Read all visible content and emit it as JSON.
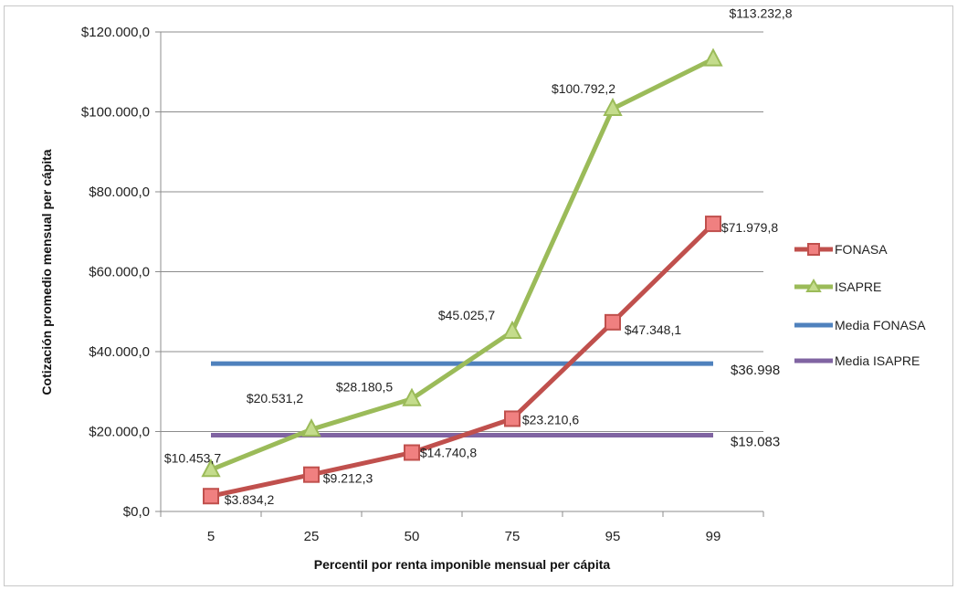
{
  "chart_data": {
    "type": "line",
    "title": "",
    "xlabel": "Percentil por renta imponible mensual per cápita",
    "ylabel": "Cotización promedio mensual per cápita",
    "categories": [
      "5",
      "25",
      "50",
      "75",
      "95",
      "99"
    ],
    "ylim": [
      0,
      120000
    ],
    "yticks": [
      {
        "value": 0,
        "label": "$0,0"
      },
      {
        "value": 20000,
        "label": "$20.000,0"
      },
      {
        "value": 40000,
        "label": "$40.000,0"
      },
      {
        "value": 60000,
        "label": "$60.000,0"
      },
      {
        "value": 80000,
        "label": "$80.000,0"
      },
      {
        "value": 100000,
        "label": "$100.000,0"
      },
      {
        "value": 120000,
        "label": "$120.000,0"
      }
    ],
    "grid": true,
    "legend_position": "right",
    "series": [
      {
        "name": "FONASA",
        "color": "#c0504d",
        "marker": "square",
        "values": [
          3834.2,
          9212.3,
          14740.8,
          23210.6,
          47348.1,
          71979.8
        ],
        "labels": [
          "$3.834,2",
          "$9.212,3",
          "$14.740,8",
          "$23.210,6",
          "$47.348,1",
          "$71.979,8"
        ]
      },
      {
        "name": "ISAPRE",
        "color": "#9bbb59",
        "marker": "triangle",
        "values": [
          10453.7,
          20531.2,
          28180.5,
          45025.7,
          100792.2,
          113232.8
        ],
        "labels": [
          "$10.453,7",
          "$20.531,2",
          "$28.180,5",
          "$45.025,7",
          "$100.792,2",
          "$113.232,8"
        ]
      },
      {
        "name": "Media FONASA",
        "color": "#4f81bd",
        "marker": "none",
        "values": [
          36998,
          36998,
          36998,
          36998,
          36998,
          36998
        ],
        "end_label": "$36.998"
      },
      {
        "name": "Media ISAPRE",
        "color": "#8064a2",
        "marker": "none",
        "values": [
          19083,
          19083,
          19083,
          19083,
          19083,
          19083
        ],
        "end_label": "$19.083"
      }
    ]
  }
}
